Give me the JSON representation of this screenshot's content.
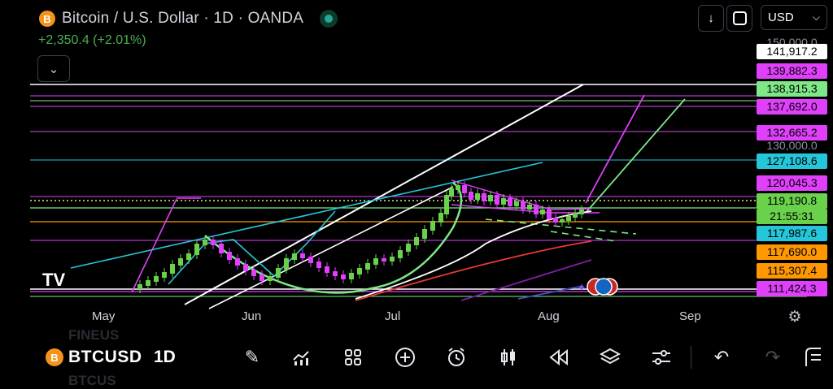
{
  "header": {
    "title": "Bitcoin / U.S. Dollar · 1D · OANDA",
    "symbol_icon": "B",
    "change": "+2,350.4 (+2.01%)",
    "collapse_icon": "chevron-down-icon"
  },
  "top_controls": {
    "download_icon": "down-arrow-icon",
    "fullscreen_icon": "frame-icon",
    "currency": "USD"
  },
  "price_scale": {
    "plain": [
      "150,000.0",
      "130,000.0"
    ],
    "labels": [
      {
        "text": "141,917.2",
        "bg": "#ffffff",
        "fg": "#000000"
      },
      {
        "text": "139,882.3",
        "bg": "#e040fb",
        "fg": "#000000"
      },
      {
        "text": "138,915.3",
        "bg": "#7ee787",
        "fg": "#000000"
      },
      {
        "text": "137,692.0",
        "bg": "#e040fb",
        "fg": "#000000"
      },
      {
        "text": "132,665.2",
        "bg": "#e040fb",
        "fg": "#000000"
      },
      {
        "text": "127,108.6",
        "bg": "#26c6da",
        "fg": "#000000"
      },
      {
        "text": "120,045.3",
        "bg": "#e040fb",
        "fg": "#000000"
      },
      {
        "text": "119,190.8",
        "bg": "#69d14a",
        "fg": "#000000"
      },
      {
        "text": "21:55:31",
        "bg": "#69d14a",
        "fg": "#000000"
      },
      {
        "text": "117,987.6",
        "bg": "#26c6da",
        "fg": "#000000"
      },
      {
        "text": "117,690.0",
        "bg": "#ff9800",
        "fg": "#000000"
      },
      {
        "text": "115,307.4",
        "bg": "#ff9800",
        "fg": "#000000"
      },
      {
        "text": "111,424.3",
        "bg": "#e040fb",
        "fg": "#000000"
      }
    ]
  },
  "time_axis": {
    "labels": [
      "May",
      "Jun",
      "Jul",
      "Aug",
      "Sep"
    ],
    "settings_icon": "gear-icon"
  },
  "watermark": "TV",
  "toolbar": {
    "symbol": "BTCUSD",
    "symbol_icon": "B",
    "interval": "1D",
    "ghost_top": "FINEUS",
    "ghost_bottom": "BTCUS",
    "icons": [
      "pencil-icon",
      "indicators-icon",
      "grid-icon",
      "plus-circle-icon",
      "alarm-icon",
      "candle-icon",
      "replay-icon",
      "layers-icon",
      "settings-sliders-icon",
      "undo-icon",
      "redo-icon",
      "drag-handle-icon"
    ]
  },
  "colors": {
    "background": "#000000",
    "bull": "#69d14a",
    "bear": "#e040fb",
    "white_line": "#ffffff",
    "cyan_line": "#26c6da",
    "orange_line": "#ff9800",
    "red_line": "#e53935",
    "purple_line": "#7b1fa2"
  }
}
